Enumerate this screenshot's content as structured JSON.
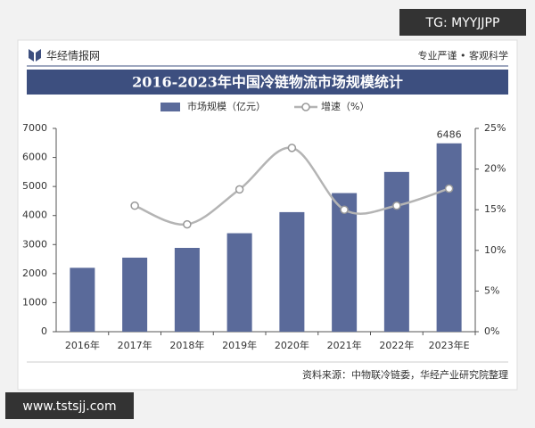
{
  "brand": "华经情报网",
  "slogan": "专业严谨 • 客观科学",
  "source": "资料来源：中物联冷链委，华经产业研究院整理",
  "watermarks": [
    "TG: MYYJJPP",
    "www.tstsjj.com"
  ],
  "chart_data": {
    "type": "bar",
    "title": "2016-2023年中国冷链物流市场规模统计",
    "categories": [
      "2016年",
      "2017年",
      "2018年",
      "2019年",
      "2020年",
      "2021年",
      "2022年",
      "2023年E"
    ],
    "series": [
      {
        "name": "市场规模（亿元）",
        "type": "bar",
        "color": "#5a6a9a",
        "values": [
          2200,
          2550,
          2886,
          3391,
          4117,
          4773,
          5500,
          6486
        ]
      },
      {
        "name": "增速（%）",
        "type": "line",
        "axis": "y2",
        "color": "#b4b4b4",
        "values": [
          null,
          15.5,
          13.2,
          17.5,
          22.6,
          15.0,
          15.5,
          17.6
        ]
      }
    ],
    "ylim": [
      0,
      7000
    ],
    "yticks": [
      0,
      1000,
      2000,
      3000,
      4000,
      5000,
      6000,
      7000
    ],
    "y2lim": [
      0,
      25
    ],
    "y2ticks": [
      {
        "value": 0,
        "label": "0%"
      },
      {
        "value": 5,
        "label": "5%"
      },
      {
        "value": 10,
        "label": "10%"
      },
      {
        "value": 15,
        "label": "15%"
      },
      {
        "value": 20,
        "label": "20%"
      },
      {
        "value": 25,
        "label": "25%"
      }
    ]
  }
}
